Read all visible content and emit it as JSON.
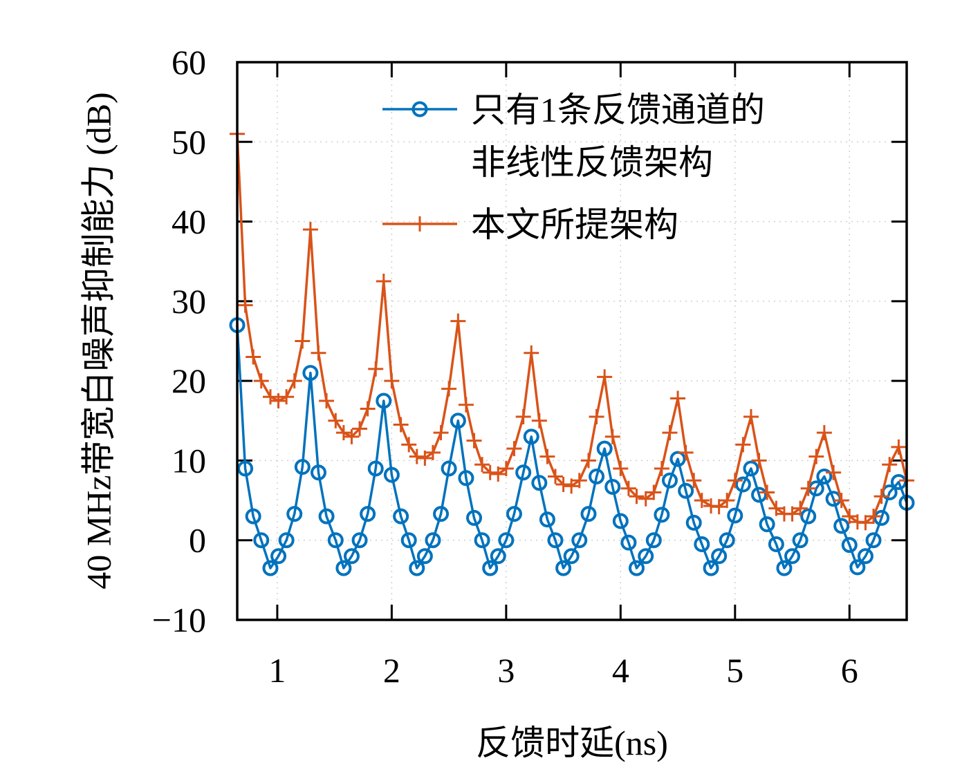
{
  "chart_data": {
    "type": "line",
    "xlabel": "反馈时延(ns)",
    "ylabel": "40 MHz带宽白噪声抑制能力 (dB)",
    "x": [
      0.65,
      0.72,
      0.79,
      0.86,
      0.94,
      1.01,
      1.08,
      1.15,
      1.22,
      1.29,
      1.36,
      1.43,
      1.51,
      1.58,
      1.65,
      1.72,
      1.79,
      1.86,
      1.93,
      2.0,
      2.08,
      2.15,
      2.22,
      2.29,
      2.36,
      2.43,
      2.5,
      2.58,
      2.65,
      2.72,
      2.79,
      2.86,
      2.93,
      3.0,
      3.07,
      3.15,
      3.22,
      3.29,
      3.36,
      3.43,
      3.5,
      3.57,
      3.64,
      3.72,
      3.79,
      3.86,
      3.93,
      4.0,
      4.07,
      4.14,
      4.22,
      4.29,
      4.36,
      4.43,
      4.5,
      4.57,
      4.64,
      4.71,
      4.79,
      4.86,
      4.93,
      5.0,
      5.07,
      5.14,
      5.21,
      5.28,
      5.36,
      5.43,
      5.5,
      5.57,
      5.64,
      5.71,
      5.78,
      5.86,
      5.93,
      6.0,
      6.07,
      6.14,
      6.21,
      6.28,
      6.35,
      6.43,
      6.5
    ],
    "series": [
      {
        "name": "只有1条反馈通道的\n非线性反馈架构",
        "color": "#0072bd",
        "marker": "circle",
        "values": [
          27,
          9,
          3,
          0,
          -3.5,
          -2,
          0,
          3.3,
          9.2,
          21,
          8.5,
          3,
          0,
          -3.5,
          -2,
          0,
          3.3,
          9,
          17.5,
          8.2,
          3,
          0,
          -3.5,
          -2,
          0,
          3.3,
          9,
          15,
          7.8,
          2.8,
          0,
          -3.5,
          -2,
          0,
          3.3,
          8.5,
          13,
          7.2,
          2.6,
          0,
          -3.5,
          -2,
          0,
          3.3,
          8,
          11.5,
          6.7,
          2.4,
          -0.3,
          -3.5,
          -2,
          0,
          3.2,
          7.5,
          10.2,
          6.2,
          2.2,
          -0.5,
          -3.5,
          -2,
          0,
          3.1,
          7,
          9,
          5.7,
          2,
          -0.5,
          -3.5,
          -2,
          0,
          3,
          6.5,
          8,
          5.2,
          1.8,
          -0.6,
          -3.4,
          -2,
          0,
          2.8,
          6,
          7.3,
          4.7
        ]
      },
      {
        "name": "本文所提架构",
        "color": "#d95319",
        "marker": "plus",
        "values": [
          51,
          29.5,
          23,
          20,
          18,
          17.5,
          18,
          20,
          25,
          39,
          23.5,
          17.5,
          15,
          13.5,
          13,
          14,
          16.5,
          21.5,
          32.5,
          20,
          14.5,
          12,
          10.5,
          10.3,
          11,
          13.5,
          19,
          27.5,
          17,
          12.5,
          9.5,
          8.5,
          8.3,
          9,
          11.5,
          15.5,
          23.5,
          15,
          10.5,
          8,
          7,
          6.8,
          7.5,
          10,
          15.5,
          20.5,
          13,
          9,
          6.5,
          5.5,
          5.2,
          6,
          9,
          13.5,
          17.8,
          11,
          7.5,
          5,
          4.3,
          4.2,
          5,
          7.5,
          12,
          15.5,
          10,
          6,
          4,
          3.3,
          3.3,
          4,
          6.5,
          10.5,
          13.5,
          8.5,
          5,
          3,
          2.3,
          2.2,
          3,
          5.5,
          9.5,
          11.7,
          7.5
        ]
      }
    ],
    "xlim": [
      0.65,
      6.5
    ],
    "xticks": [
      1,
      2,
      3,
      4,
      5,
      6
    ],
    "ylim": [
      -10,
      60
    ],
    "yticks": [
      {
        "value": -10,
        "label": "−10"
      },
      0,
      10,
      20,
      30,
      40,
      50,
      60
    ],
    "grid": true,
    "legend": "upper right"
  }
}
